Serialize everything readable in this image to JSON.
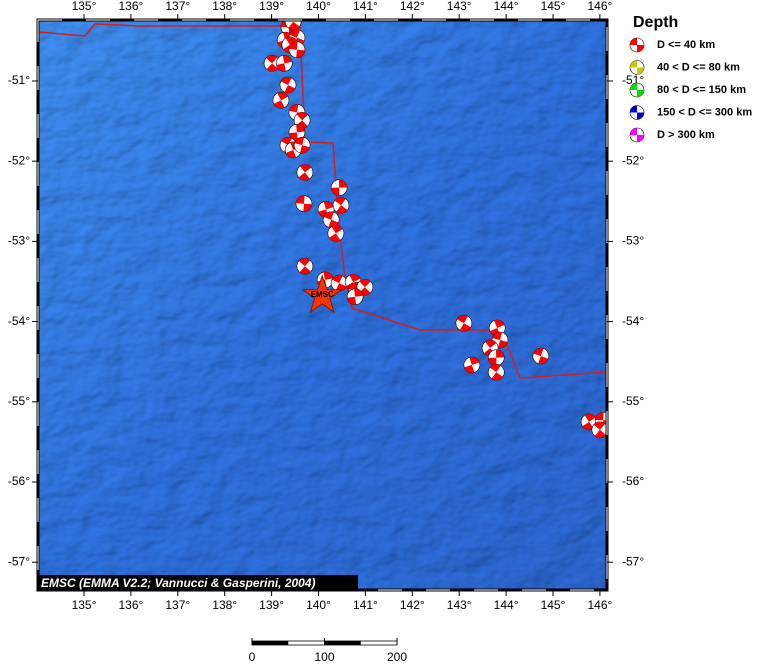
{
  "map": {
    "lon_ticks": [
      {
        "value": 135,
        "label": "135°"
      },
      {
        "value": 136,
        "label": "136°"
      },
      {
        "value": 137,
        "label": "137°"
      },
      {
        "value": 138,
        "label": "138°"
      },
      {
        "value": 139,
        "label": "139°"
      },
      {
        "value": 140,
        "label": "140°"
      },
      {
        "value": 141,
        "label": "141°"
      },
      {
        "value": 142,
        "label": "142°"
      },
      {
        "value": 143,
        "label": "143°"
      },
      {
        "value": 144,
        "label": "144°"
      },
      {
        "value": 145,
        "label": "145°"
      },
      {
        "value": 146,
        "label": "146°"
      }
    ],
    "lat_ticks": [
      {
        "value": -51,
        "label": "-51°"
      },
      {
        "value": -52,
        "label": "-52°"
      },
      {
        "value": -53,
        "label": "-53°"
      },
      {
        "value": -54,
        "label": "-54°"
      },
      {
        "value": -55,
        "label": "-55°"
      },
      {
        "value": -56,
        "label": "-56°"
      },
      {
        "value": -57,
        "label": "-57°"
      }
    ],
    "events": [
      {
        "lon": 139.37,
        "lat": -50.33
      },
      {
        "lon": 139.46,
        "lat": -50.26
      },
      {
        "lon": 139.29,
        "lat": -50.49
      },
      {
        "lon": 139.54,
        "lat": -50.46
      },
      {
        "lon": 139.39,
        "lat": -50.55
      },
      {
        "lon": 139.54,
        "lat": -50.61
      },
      {
        "lon": 139.01,
        "lat": -50.78
      },
      {
        "lon": 139.27,
        "lat": -50.78
      },
      {
        "lon": 139.35,
        "lat": -51.05
      },
      {
        "lon": 139.2,
        "lat": -51.24
      },
      {
        "lon": 139.54,
        "lat": -51.39
      },
      {
        "lon": 139.65,
        "lat": -51.49
      },
      {
        "lon": 139.54,
        "lat": -51.64
      },
      {
        "lon": 139.35,
        "lat": -51.8
      },
      {
        "lon": 139.46,
        "lat": -51.86
      },
      {
        "lon": 139.65,
        "lat": -51.8
      },
      {
        "lon": 139.71,
        "lat": -52.14
      },
      {
        "lon": 140.44,
        "lat": -52.33
      },
      {
        "lon": 140.48,
        "lat": -52.55
      },
      {
        "lon": 140.16,
        "lat": -52.6
      },
      {
        "lon": 140.27,
        "lat": -52.73
      },
      {
        "lon": 140.37,
        "lat": -52.9
      },
      {
        "lon": 139.69,
        "lat": -52.53
      },
      {
        "lon": 139.71,
        "lat": -53.31
      },
      {
        "lon": 140.14,
        "lat": -53.48
      },
      {
        "lon": 140.44,
        "lat": -53.52
      },
      {
        "lon": 140.74,
        "lat": -53.51
      },
      {
        "lon": 140.82,
        "lat": -53.61
      },
      {
        "lon": 140.99,
        "lat": -53.57
      },
      {
        "lon": 140.78,
        "lat": -53.69
      },
      {
        "lon": 143.1,
        "lat": -54.02
      },
      {
        "lon": 143.81,
        "lat": -54.08
      },
      {
        "lon": 143.87,
        "lat": -54.23
      },
      {
        "lon": 143.66,
        "lat": -54.33
      },
      {
        "lon": 143.79,
        "lat": -54.45
      },
      {
        "lon": 143.79,
        "lat": -54.63
      },
      {
        "lon": 143.27,
        "lat": -54.54
      },
      {
        "lon": 144.74,
        "lat": -54.43
      },
      {
        "lon": 145.77,
        "lat": -55.25
      },
      {
        "lon": 146.07,
        "lat": -55.23
      },
      {
        "lon": 146.0,
        "lat": -55.35
      }
    ],
    "epicenter": {
      "lon": 140.08,
      "lat": -53.68,
      "label": "EMSC"
    },
    "credit": "EMSC (EMMA V2.2; Vannucci & Gasperini, 2004)",
    "scale_ticks": [
      0,
      100,
      200
    ]
  },
  "legend": {
    "title": "Depth",
    "items": [
      {
        "label": "D <= 40 km",
        "color": "#ff0000"
      },
      {
        "label": "40 < D <= 80 km",
        "color": "#c8c800"
      },
      {
        "label": "80 < D <= 150 km",
        "color": "#00e000"
      },
      {
        "label": "150 < D <= 300 km",
        "color": "#0000c8"
      },
      {
        "label": "D > 300 km",
        "color": "#ff00ff"
      }
    ]
  }
}
